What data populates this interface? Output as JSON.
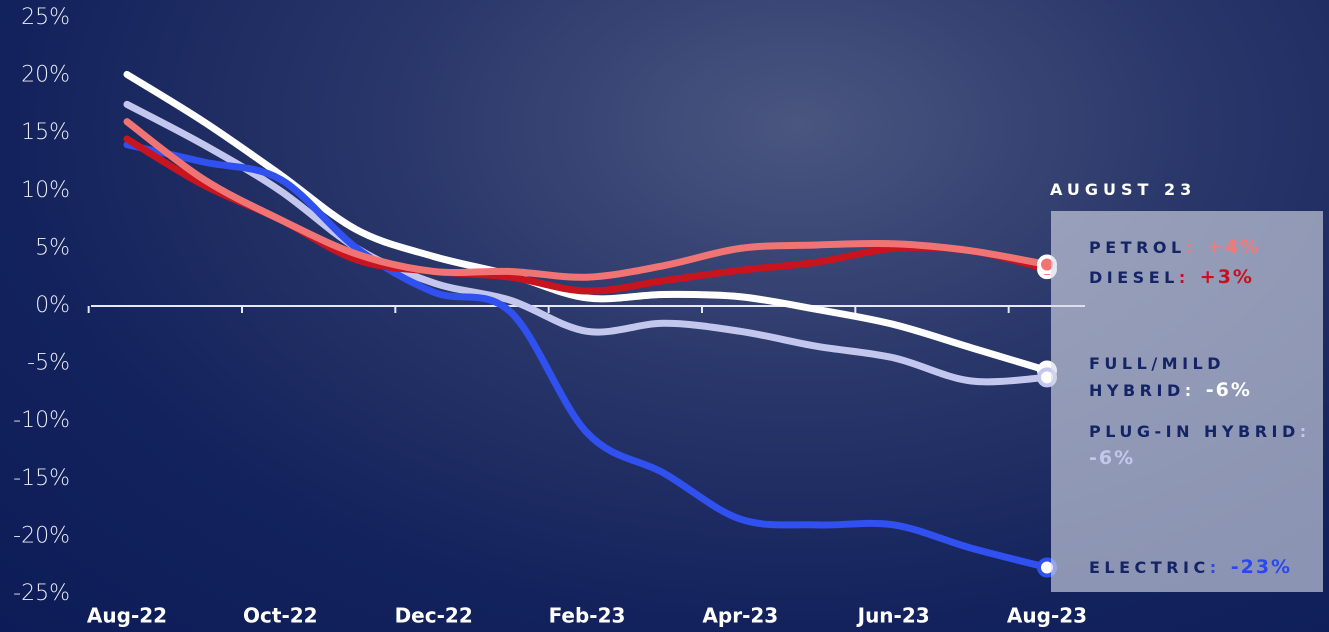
{
  "chart_data": {
    "type": "line",
    "categories": [
      "Aug-22",
      null,
      "Oct-22",
      null,
      "Dec-22",
      null,
      "Feb-23",
      null,
      "Apr-23",
      null,
      "Jun-23",
      null,
      "Aug-23"
    ],
    "ylim": [
      -25,
      25
    ],
    "yticks": [
      {
        "value": -25,
        "label": "-25%"
      },
      {
        "value": -20,
        "label": "-20%"
      },
      {
        "value": -15,
        "label": "-15%"
      },
      {
        "value": -10,
        "label": "-10%"
      },
      {
        "value": -5,
        "label": "-5%"
      },
      {
        "value": 0,
        "label": "0%"
      },
      {
        "value": 5,
        "label": "5%"
      },
      {
        "value": 10,
        "label": "10%"
      },
      {
        "value": 15,
        "label": "15%"
      },
      {
        "value": 20,
        "label": "20%"
      },
      {
        "value": 25,
        "label": "25%"
      }
    ],
    "legend_title": "AUGUST 23",
    "separator": ":",
    "series": [
      {
        "name": "FULL/MILD HYBRID",
        "color": "#ffffff",
        "label_color": "#ffffff",
        "end_label": "-6%",
        "values": [
          20.1,
          16,
          11.4,
          6.6,
          4.3,
          2.7,
          0.7,
          1,
          0.8,
          -0.3,
          -1.6,
          -3.6,
          -5.6
        ]
      },
      {
        "name": "PLUG-IN HYBRID",
        "color": "#c3c7ee",
        "label_color": "#c3c7ee",
        "end_label": "-6%",
        "values": [
          17.5,
          14,
          10,
          5,
          2,
          0.5,
          -2.2,
          -1.5,
          -2.2,
          -3.5,
          -4.5,
          -6.5,
          -6.2
        ]
      },
      {
        "name": "ELECTRIC",
        "color": "#3050f0",
        "label_color": "#2a48ee",
        "end_label": "-23%",
        "values": [
          14,
          12.5,
          11,
          5,
          1.2,
          -0.5,
          -11,
          -14.5,
          -18.5,
          -19,
          -19,
          -21,
          -22.7
        ]
      },
      {
        "name": "DIESEL",
        "color": "#c8141e",
        "label_color": "#c8101e",
        "end_label": "+3%",
        "values": [
          14.5,
          10.5,
          7.5,
          4,
          3,
          2.5,
          1.3,
          2.2,
          3.1,
          3.8,
          5,
          4.8,
          3.2
        ]
      },
      {
        "name": "PETROL",
        "color": "#f07474",
        "label_color": "#f07a7a",
        "end_label": "+4%",
        "values": [
          16,
          11,
          7.5,
          4.5,
          3,
          3,
          2.5,
          3.5,
          5,
          5.3,
          5.4,
          4.8,
          3.6
        ]
      }
    ]
  }
}
